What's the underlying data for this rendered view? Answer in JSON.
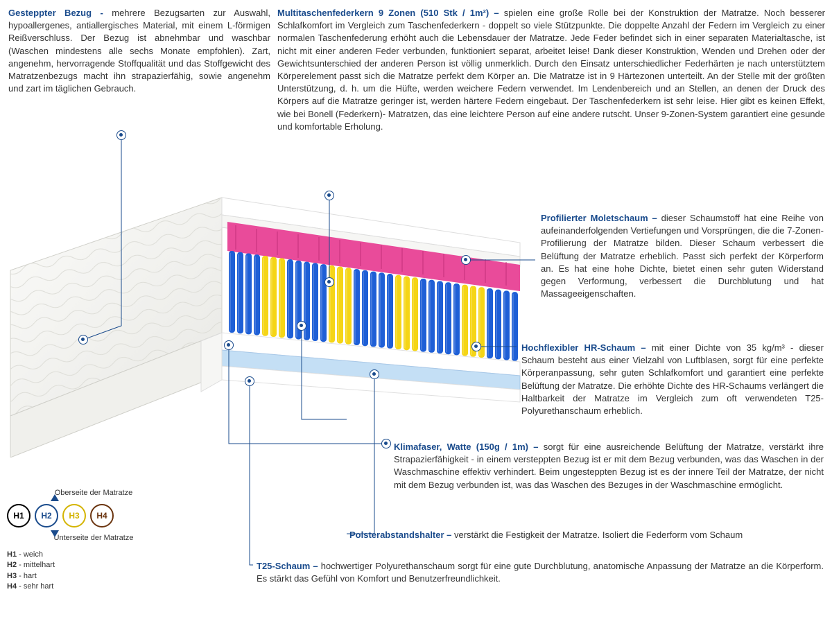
{
  "colors": {
    "title": "#1a4b8c",
    "text": "#333333",
    "cover": "#f2f2f0",
    "topFoam": "#ffffff",
    "moletFoam": "#e94b9a",
    "springBlue": "#1e5fd6",
    "springYellow": "#f5d516",
    "bottomFoam1": "#c4dff5",
    "bottomFoamWhite": "#ffffff",
    "h1": "#000000",
    "h2": "#1a4b8c",
    "h3": "#d4b400",
    "h4": "#6b3510"
  },
  "topLeft": {
    "title": "Gesteppter Bezug - ",
    "body": "mehrere Bezugsarten zur Auswahl, hypoallergenes, antiallergisches Material, mit einem L-förmigen Reißverschluss. Der Bezug ist abnehmbar und waschbar (Waschen mindestens alle sechs Monate empfohlen). Zart, angenehm, hervorragende Stoffqualität und das Stoffgewicht des Matratzenbezugs macht ihn strapazierfähig, sowie angenehm und zart im täglichen Gebrauch."
  },
  "topRight": {
    "title": "Multitaschenfederkern 9 Zonen (510 Stk / 1m²) – ",
    "body": " spielen eine große Rolle bei der Konstruktion der Matratze. Noch besserer Schlafkomfort im Vergleich zum Taschenfederkern - doppelt so viele Stützpunkte. Die doppelte Anzahl der Federn im Vergleich zu einer normalen Taschenfederung erhöht auch die Lebensdauer der Matratze. Jede Feder befindet sich in einer separaten Materialtasche, ist nicht mit einer anderen Feder verbunden, funktioniert separat, arbeitet leise! Dank dieser Konstruktion, Wenden und Drehen oder der Gewichtsunterschied der anderen Person ist völlig unmerklich. Durch den Einsatz unterschiedlicher Federhärten je nach unterstütztem Körperelement passt sich die Matratze perfekt dem Körper an. Die Matratze ist in 9 Härtezonen unterteilt. An der Stelle mit der größten Unterstützung, d. h. um die Hüfte, werden weichere Federn verwendet. Im Lendenbereich und an Stellen, an denen der Druck des Körpers auf die Matratze geringer ist, werden härtere Federn eingebaut. Der Taschenfederkern ist sehr leise. Hier gibt es keinen Effekt, wie bei Bonell (Federkern)- Matratzen, das eine leichtere Person auf eine andere rutscht. Unser 9-Zonen-System garantiert eine gesunde und komfortable Erholung."
  },
  "r1": {
    "title": "Profilierter Moletschaum – ",
    "body": " dieser Schaumstoff hat eine Reihe von aufeinanderfolgenden Vertiefungen und Vorsprüngen, die die 7-Zonen-Profilierung der Matratze bilden. Dieser Schaum verbessert die Belüftung der Matratze erheblich. Passt sich perfekt der Körperform an. Es hat eine hohe Dichte, bietet einen sehr guten Widerstand gegen Verformung, verbessert die Durchblutung und hat Massageeigenschaften."
  },
  "r2": {
    "title": "Hochflexibler HR-Schaum – ",
    "body": " mit einer Dichte von 35 kg/m³ - dieser Schaum besteht aus einer Vielzahl von Luftblasen, sorgt für eine perfekte Körperanpassung, sehr guten Schlafkomfort und garantiert eine perfekte Belüftung der Matratze. Die erhöhte Dichte des HR-Schaums verlängert die Haltbarkeit der Matratze im Vergleich zum oft verwendeten T25-Polyurethanschaum erheblich."
  },
  "r3": {
    "title": "Klimafaser, Watte (150g / 1m) – ",
    "body": " sorgt für eine ausreichende Belüftung der Matratze, verstärkt ihre Strapazierfähigkeit - in einem versteppten Bezug ist er mit dem Bezug verbunden, was das Waschen in der Waschmaschine effektiv verhindert. Beim ungesteppten Bezug ist es der innere Teil der Matratze, der nicht mit dem Bezug verbunden ist, was das Waschen des Bezuges in der Waschmaschine ermöglicht."
  },
  "r4": {
    "title": "Polsterabstandshalter – ",
    "body": "verstärkt die Festigkeit der Matratze. Isoliert die Federform vom Schaum"
  },
  "r5": {
    "title": "T25-Schaum – ",
    "body": "hochwertiger Polyurethanschaum sorgt für eine gute Durchblutung, anatomische Anpassung der Matratze an die Körperform. Es stärkt das Gefühl von Komfort und Benutzerfreundlichkeit."
  },
  "legend": {
    "top": "Oberseite der Matratze",
    "bottom": "Unterseite der Matratze",
    "items": [
      {
        "k": "H1",
        "v": "weich"
      },
      {
        "k": "H2",
        "v": "mittelhart"
      },
      {
        "k": "H3",
        "v": "hart"
      },
      {
        "k": "H4",
        "v": "sehr hart"
      }
    ],
    "circles": [
      "H1",
      "H2",
      "H3",
      "H4"
    ]
  }
}
